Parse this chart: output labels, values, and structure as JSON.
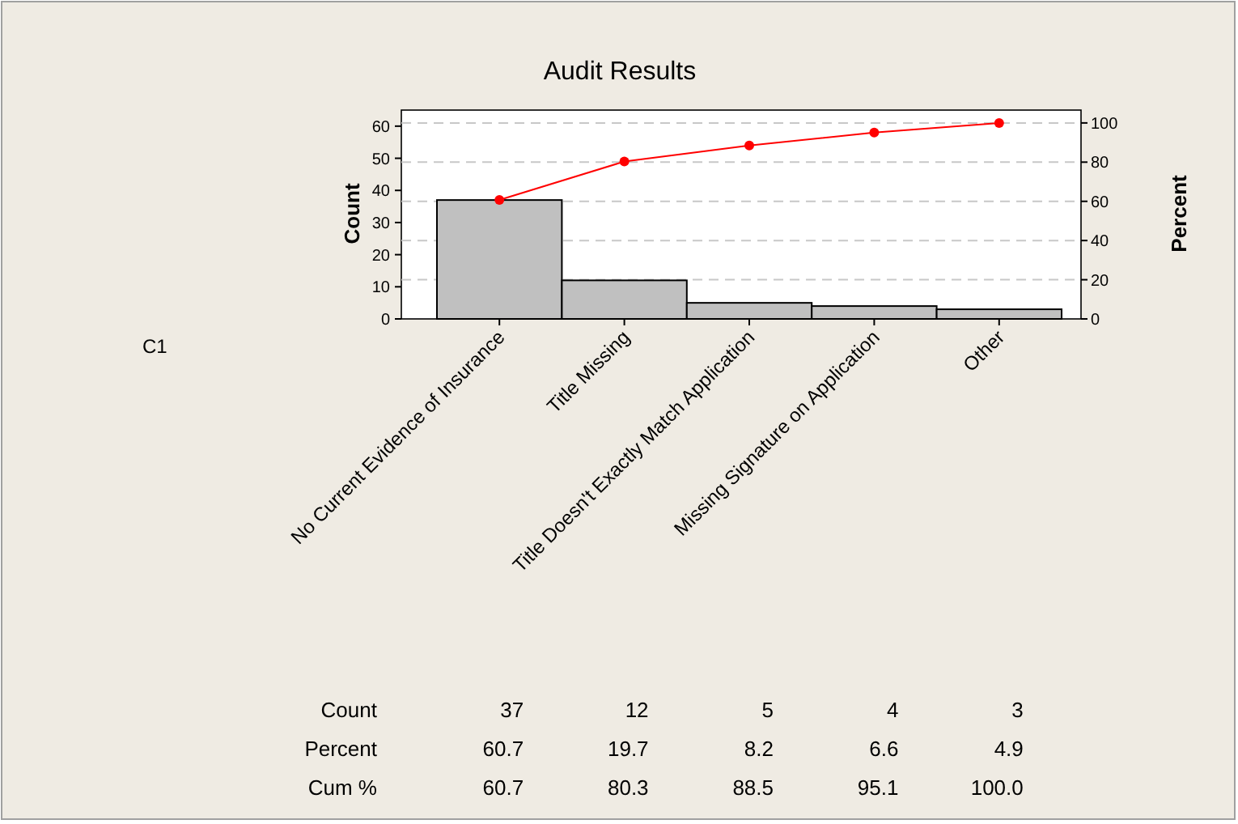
{
  "chart_data": {
    "type": "bar",
    "title": "Audit Results",
    "ylabel": "Count",
    "y2label": "Percent",
    "categories": [
      "No Current Evidence of Insurance",
      "Title Missing",
      "Title Doesn't Exactly Match Application",
      "Missing Signature on Application",
      "Other"
    ],
    "series": [
      {
        "color": "#c0c0c0",
        "values": [
          37,
          12,
          5,
          4,
          3
        ],
        "value_labels": [
          "37",
          "12",
          "5",
          "4",
          "3"
        ]
      },
      {
        "type": "line",
        "axis": "y2",
        "color": "#ff0000",
        "values": [
          60.7,
          80.3,
          88.5,
          95.1,
          100.0
        ],
        "value_labels": [
          "60.7",
          "80.3",
          "88.5",
          "95.1",
          "100.0"
        ]
      }
    ],
    "annotations": [
      "C1",
      "Count",
      "Percent",
      "Cum %",
      "60.7",
      "19.7",
      "8.2",
      "6.6",
      "4.9"
    ],
    "ylim": [
      0,
      65
    ],
    "yticks": [
      0,
      10,
      20,
      30,
      40,
      50,
      60
    ],
    "y2lim": [
      0,
      106.56
    ],
    "y2ticks": [
      0,
      20,
      40,
      60,
      80,
      100
    ],
    "grid": true,
    "marker": "circle",
    "line_style": "solid"
  }
}
